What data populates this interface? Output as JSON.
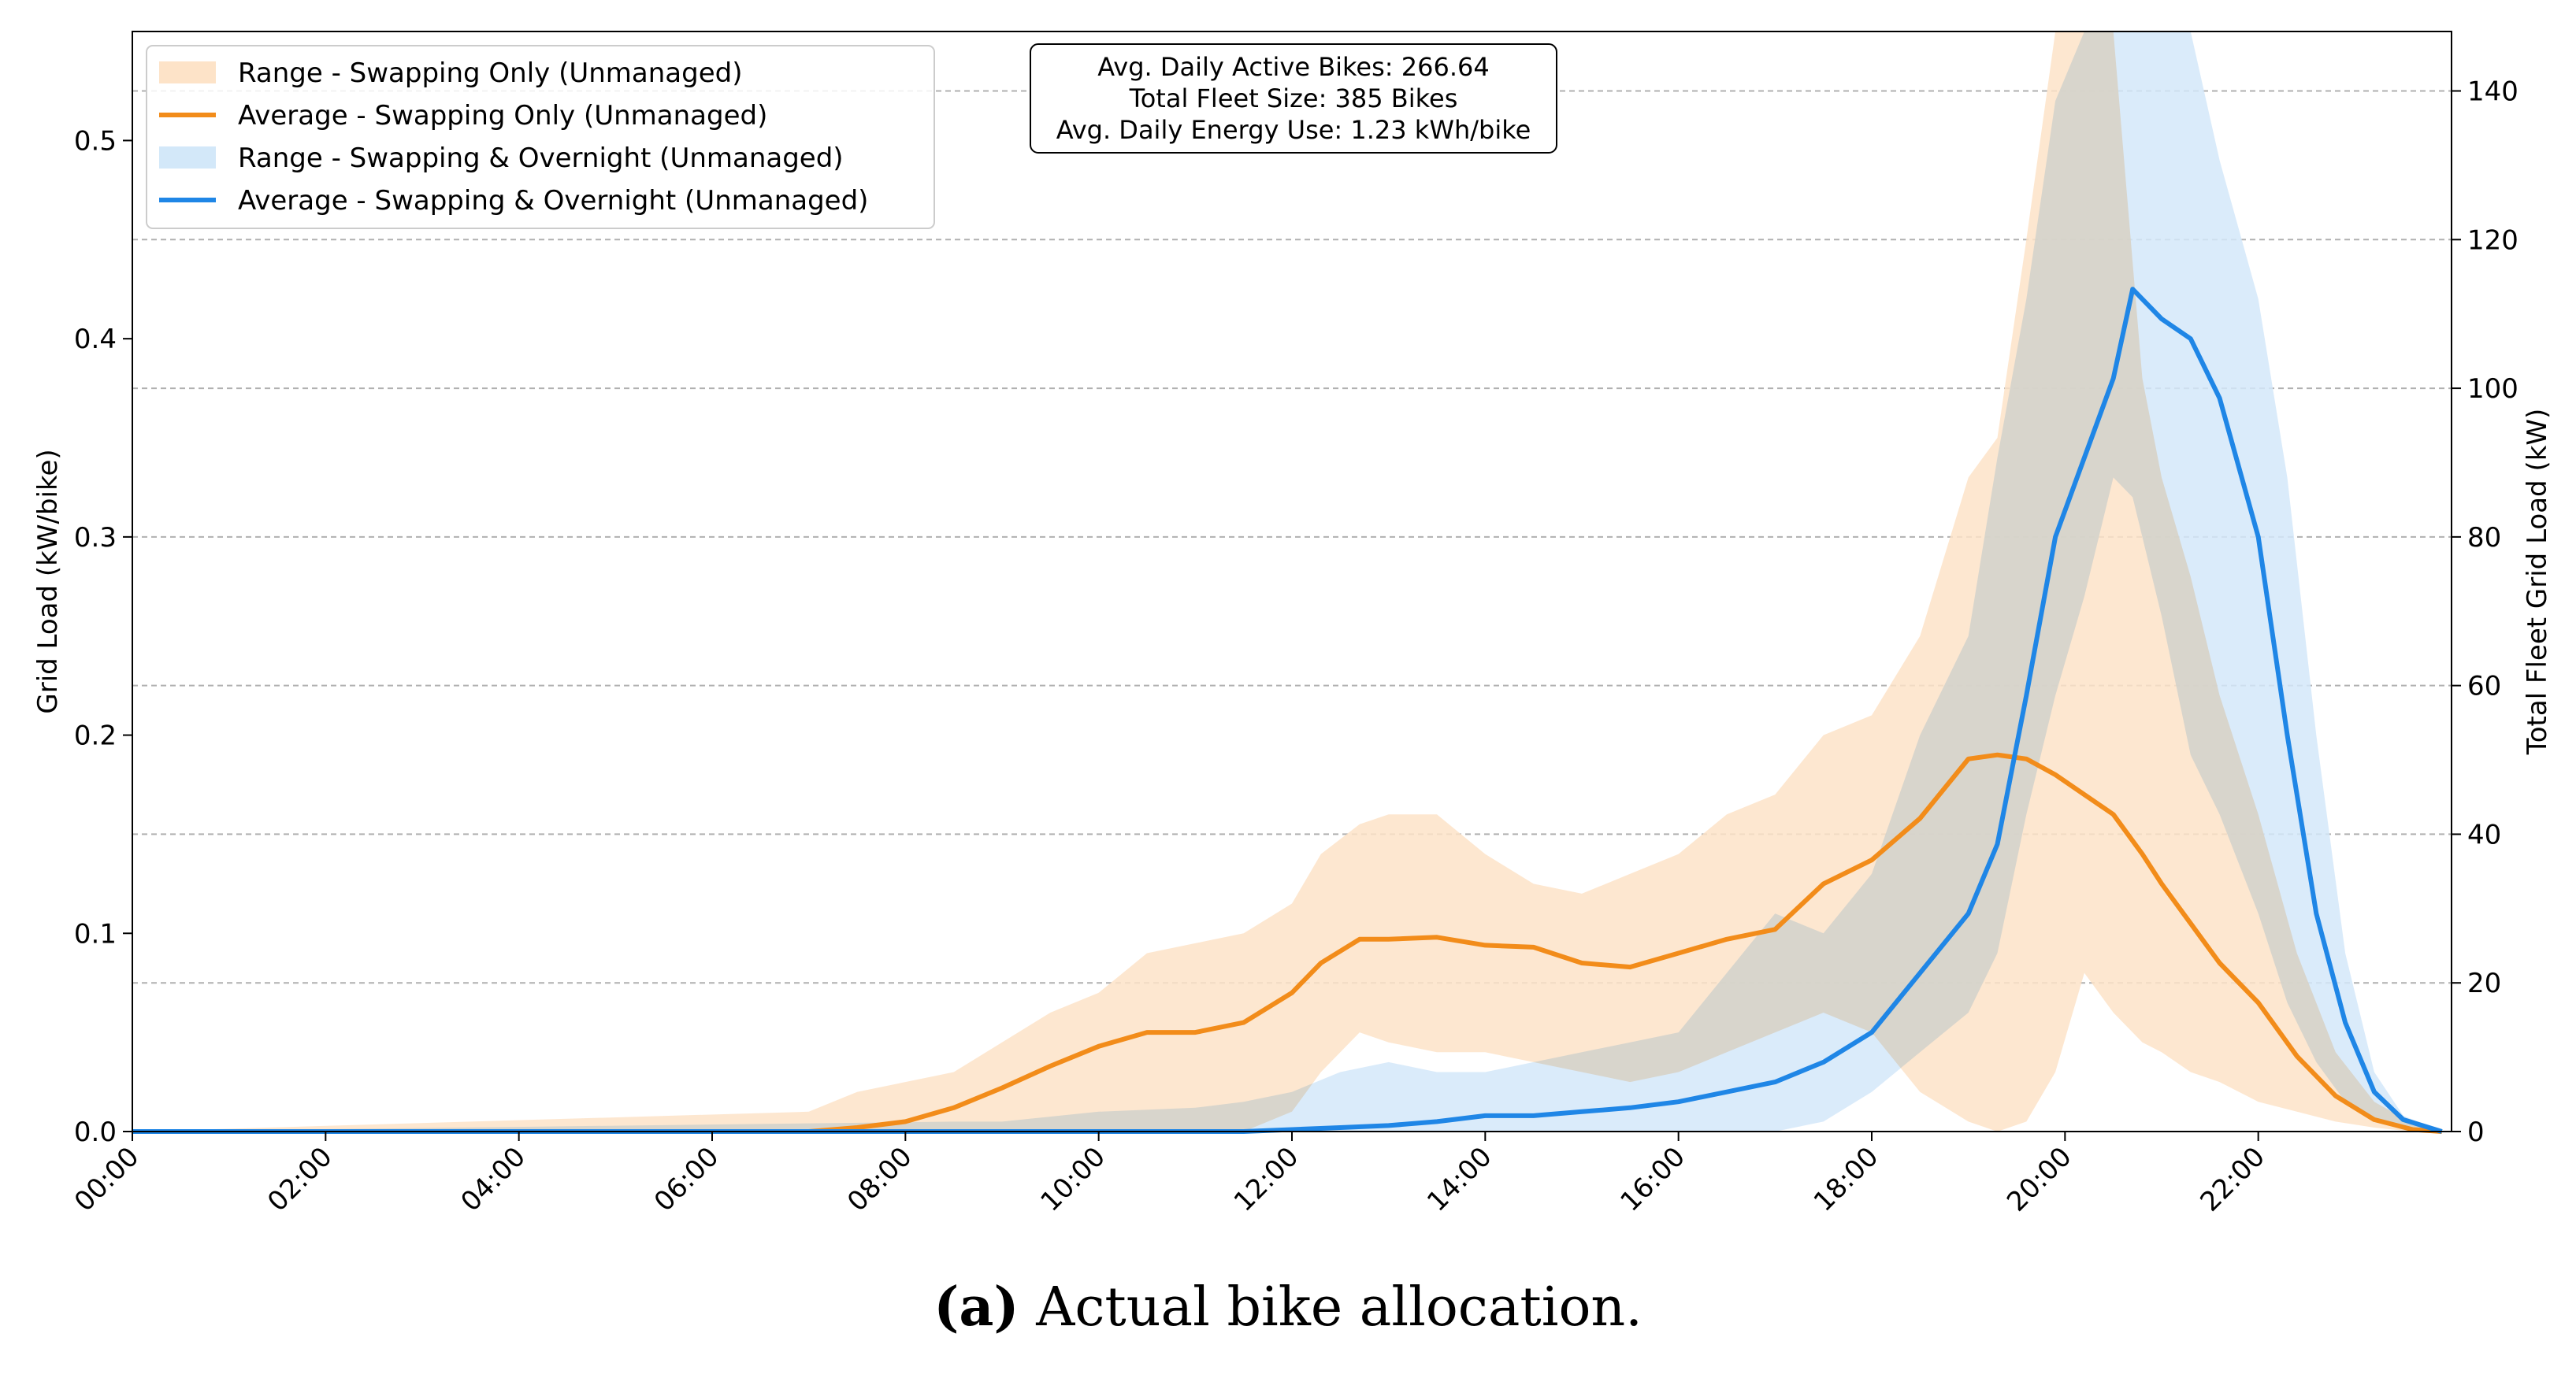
{
  "chart_data": {
    "type": "area",
    "x_unit": "hour of day",
    "xlim": [
      0,
      24
    ],
    "ylim_left": [
      0,
      0.555
    ],
    "ylim_right": [
      0,
      148
    ],
    "ylabel_left": "Grid Load (kW/bike)",
    "ylabel_right": "Total Fleet Grid Load (kW)",
    "x_tick_labels": [
      {
        "x": 0,
        "label": "00:00"
      },
      {
        "x": 2,
        "label": "02:00"
      },
      {
        "x": 4,
        "label": "04:00"
      },
      {
        "x": 6,
        "label": "06:00"
      },
      {
        "x": 8,
        "label": "08:00"
      },
      {
        "x": 10,
        "label": "10:00"
      },
      {
        "x": 12,
        "label": "12:00"
      },
      {
        "x": 14,
        "label": "14:00"
      },
      {
        "x": 16,
        "label": "16:00"
      },
      {
        "x": 18,
        "label": "18:00"
      },
      {
        "x": 20,
        "label": "20:00"
      },
      {
        "x": 22,
        "label": "22:00"
      }
    ],
    "y_tick_labels_left": [
      {
        "v": 0.0,
        "label": "0.0"
      },
      {
        "v": 0.1,
        "label": "0.1"
      },
      {
        "v": 0.2,
        "label": "0.2"
      },
      {
        "v": 0.3,
        "label": "0.3"
      },
      {
        "v": 0.4,
        "label": "0.4"
      },
      {
        "v": 0.5,
        "label": "0.5"
      }
    ],
    "y_tick_labels_right": [
      {
        "v": 0,
        "label": "0"
      },
      {
        "v": 20,
        "label": "20"
      },
      {
        "v": 40,
        "label": "40"
      },
      {
        "v": 60,
        "label": "60"
      },
      {
        "v": 80,
        "label": "80"
      },
      {
        "v": 100,
        "label": "100"
      },
      {
        "v": 120,
        "label": "120"
      },
      {
        "v": 140,
        "label": "140"
      }
    ],
    "grid": "horizontal dashed",
    "legend_position": "top-left",
    "legend": [
      {
        "label": "Range - Swapping Only (Unmanaged)",
        "kind": "band",
        "color": "#fde3c8"
      },
      {
        "label": "Average - Swapping Only (Unmanaged)",
        "kind": "line",
        "color": "#f28c1a"
      },
      {
        "label": "Range - Swapping & Overnight (Unmanaged)",
        "kind": "band",
        "color": "#d3e8f9"
      },
      {
        "label": "Average - Swapping & Overnight (Unmanaged)",
        "kind": "line",
        "color": "#1f86e6"
      }
    ],
    "annotation_lines": [
      "Avg. Daily Active Bikes: 266.64",
      "Total Fleet Size: 385 Bikes",
      "Avg. Daily Energy Use: 1.23 kWh/bike"
    ],
    "series": [
      {
        "name": "Swapping Only (Unmanaged)",
        "color": "#f28c1a",
        "band_color": "#fde3c8",
        "x": [
          0,
          7.0,
          7.5,
          8.0,
          8.5,
          9.0,
          9.5,
          10.0,
          10.5,
          11.0,
          11.5,
          12.0,
          12.3,
          12.7,
          13.0,
          13.5,
          14.0,
          14.5,
          15.0,
          15.5,
          16.0,
          16.5,
          17.0,
          17.5,
          18.0,
          18.5,
          19.0,
          19.3,
          19.6,
          19.9,
          20.2,
          20.5,
          20.8,
          21.0,
          21.3,
          21.6,
          22.0,
          22.4,
          22.8,
          23.2,
          23.6,
          23.9
        ],
        "avg": [
          0,
          0.0,
          0.002,
          0.005,
          0.012,
          0.022,
          0.033,
          0.043,
          0.05,
          0.05,
          0.055,
          0.07,
          0.085,
          0.097,
          0.097,
          0.098,
          0.094,
          0.093,
          0.085,
          0.083,
          0.09,
          0.097,
          0.102,
          0.125,
          0.137,
          0.158,
          0.188,
          0.19,
          0.188,
          0.18,
          0.17,
          0.16,
          0.14,
          0.125,
          0.105,
          0.085,
          0.065,
          0.038,
          0.018,
          0.006,
          0.001,
          0.0
        ],
        "low": [
          0,
          0.0,
          0.0,
          0.0,
          0.0,
          0.0,
          0.0,
          0.0,
          0.0,
          0.0,
          0.0,
          0.01,
          0.03,
          0.05,
          0.045,
          0.04,
          0.04,
          0.035,
          0.03,
          0.025,
          0.03,
          0.04,
          0.05,
          0.06,
          0.05,
          0.02,
          0.005,
          0.0,
          0.005,
          0.03,
          0.08,
          0.06,
          0.045,
          0.04,
          0.03,
          0.025,
          0.015,
          0.01,
          0.005,
          0.002,
          0.0,
          0.0
        ],
        "high": [
          0,
          0.01,
          0.02,
          0.025,
          0.03,
          0.045,
          0.06,
          0.07,
          0.09,
          0.095,
          0.1,
          0.115,
          0.14,
          0.155,
          0.16,
          0.16,
          0.14,
          0.125,
          0.12,
          0.13,
          0.14,
          0.16,
          0.17,
          0.2,
          0.21,
          0.25,
          0.33,
          0.35,
          0.45,
          0.555,
          0.555,
          0.555,
          0.38,
          0.33,
          0.28,
          0.22,
          0.16,
          0.09,
          0.04,
          0.015,
          0.004,
          0.0
        ]
      },
      {
        "name": "Swapping & Overnight (Unmanaged)",
        "color": "#1f86e6",
        "band_color": "#d3e8f9",
        "x": [
          0,
          8.5,
          9.0,
          10.0,
          11.0,
          11.5,
          12.0,
          12.5,
          13.0,
          13.5,
          14.0,
          14.5,
          15.0,
          15.5,
          16.0,
          16.5,
          17.0,
          17.5,
          18.0,
          18.5,
          19.0,
          19.3,
          19.6,
          19.9,
          20.2,
          20.5,
          20.7,
          21.0,
          21.3,
          21.6,
          22.0,
          22.3,
          22.6,
          22.9,
          23.2,
          23.5,
          23.9
        ],
        "avg": [
          0,
          0.0,
          0.0,
          0.0,
          0.0,
          0.0,
          0.001,
          0.002,
          0.003,
          0.005,
          0.008,
          0.008,
          0.01,
          0.012,
          0.015,
          0.02,
          0.025,
          0.035,
          0.05,
          0.08,
          0.11,
          0.145,
          0.22,
          0.3,
          0.34,
          0.38,
          0.425,
          0.41,
          0.4,
          0.37,
          0.3,
          0.2,
          0.11,
          0.055,
          0.02,
          0.006,
          0.0
        ],
        "low": [
          0,
          0.0,
          0.0,
          0.0,
          0.0,
          0.0,
          0.0,
          0.0,
          0.0,
          0.0,
          0.0,
          0.0,
          0.0,
          0.0,
          0.0,
          0.0,
          0.0,
          0.005,
          0.02,
          0.04,
          0.06,
          0.09,
          0.16,
          0.22,
          0.27,
          0.33,
          0.32,
          0.26,
          0.19,
          0.16,
          0.11,
          0.065,
          0.035,
          0.015,
          0.005,
          0.001,
          0.0
        ],
        "high": [
          0,
          0.005,
          0.005,
          0.01,
          0.012,
          0.015,
          0.02,
          0.03,
          0.035,
          0.03,
          0.03,
          0.035,
          0.04,
          0.045,
          0.05,
          0.08,
          0.11,
          0.1,
          0.13,
          0.2,
          0.25,
          0.34,
          0.42,
          0.52,
          0.555,
          0.555,
          0.555,
          0.555,
          0.555,
          0.49,
          0.42,
          0.33,
          0.2,
          0.09,
          0.03,
          0.008,
          0.0
        ]
      }
    ]
  },
  "caption": {
    "panel": "(a)",
    "text": " Actual bike allocation."
  }
}
